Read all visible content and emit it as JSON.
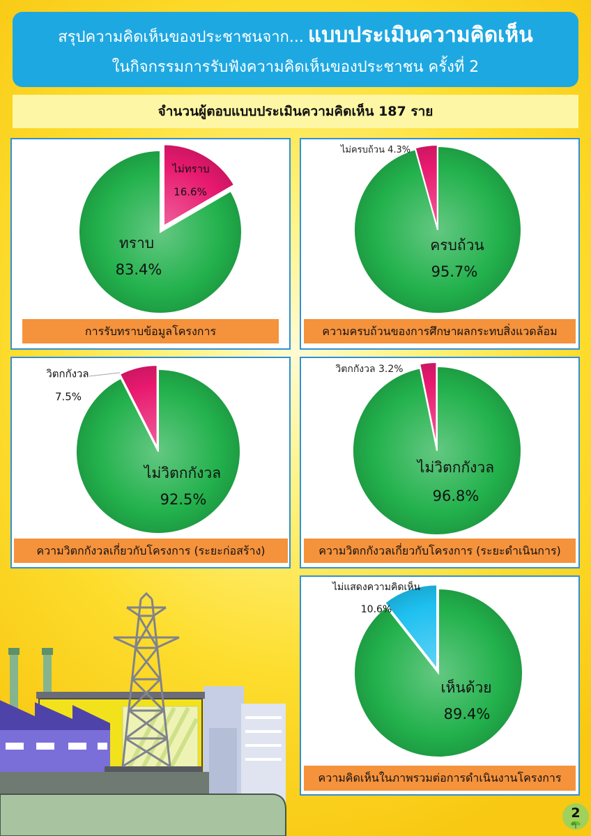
{
  "header": {
    "title_prefix": "สรุปความคิดเห็นของประชาชนจาก...",
    "title_emphasis": "แบบประเมินความคิดเห็น",
    "subtitle": "ในกิจกรรมการรับฟังความคิดเห็นของประชาชน ครั้งที่ 2"
  },
  "respondents": {
    "text": "จำนวนผู้ตอบแบบประเมินความคิดเห็น 187 ราย"
  },
  "page_number": "2",
  "colors": {
    "header_bg": "#1ea8e2",
    "respondents_bg": "#fdf6a4",
    "panel_border": "#2e8fdb",
    "caption_bg": "#f5923c"
  },
  "chart_data": [
    {
      "type": "pie",
      "title": "การรับทราบข้อมูลโครงการ",
      "unit": "%",
      "slices": [
        {
          "label": "ไม่ทราบ",
          "value": 16.6,
          "color": "#e8196f"
        },
        {
          "label": "ทราบ",
          "value": 83.4,
          "color": "#22b14c"
        }
      ]
    },
    {
      "type": "pie",
      "title": "ความครบถ้วนของการศึกษาผลกระทบสิ่งแวดล้อม",
      "unit": "%",
      "slices": [
        {
          "label": "ครบถ้วน",
          "value": 95.7,
          "color": "#22b14c"
        },
        {
          "label": "ไม่ครบถ้วน",
          "value": 4.3,
          "color": "#e8196f"
        }
      ]
    },
    {
      "type": "pie",
      "title": "ความวิตกกังวลเกี่ยวกับโครงการ (ระยะก่อสร้าง)",
      "unit": "%",
      "slices": [
        {
          "label": "ไม่วิตกกังวล",
          "value": 92.5,
          "color": "#22b14c"
        },
        {
          "label": "วิตกกังวล",
          "value": 7.5,
          "color": "#e8196f"
        }
      ]
    },
    {
      "type": "pie",
      "title": "ความวิตกกังวลเกี่ยวกับโครงการ (ระยะดำเนินการ)",
      "unit": "%",
      "slices": [
        {
          "label": "ไม่วิตกกังวล",
          "value": 96.8,
          "color": "#22b14c"
        },
        {
          "label": "วิตกกังวล",
          "value": 3.2,
          "color": "#e8196f"
        }
      ]
    },
    {
      "type": "pie",
      "title": "ความคิดเห็นในภาพรวมต่อการดำเนินงานโครงการ",
      "unit": "%",
      "slices": [
        {
          "label": "เห็นด้วย",
          "value": 89.4,
          "color": "#22b14c"
        },
        {
          "label": "ไม่แสดงความคิดเห็น",
          "value": 10.6,
          "color": "#1ec0f0"
        }
      ]
    }
  ]
}
